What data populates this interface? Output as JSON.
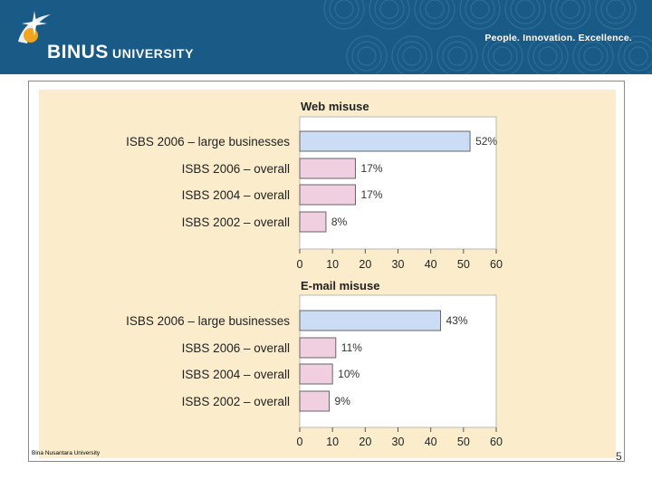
{
  "header": {
    "brand_name": "BINUS",
    "brand_suffix": "UNIVERSITY",
    "tagline": "People. Innovation. Excellence.",
    "logo_icon": "binus-swoosh-icon",
    "colors": {
      "header_bg": "#1a5a87",
      "chart_bg": "#fbedcc"
    }
  },
  "footer": {
    "text": "Bina Nusantara University",
    "page_number": "5"
  },
  "chart_data": [
    {
      "type": "bar",
      "orientation": "horizontal",
      "title": "Web misuse",
      "categories": [
        "ISBS 2006 – large businesses",
        "ISBS 2006 – overall",
        "ISBS 2004 – overall",
        "ISBS 2002 – overall"
      ],
      "values": [
        52,
        17,
        17,
        8
      ],
      "value_labels": [
        "52%",
        "17%",
        "17%",
        "8%"
      ],
      "bar_colors": [
        "#cbdcf5",
        "#efcfe0",
        "#efcfe0",
        "#efcfe0"
      ],
      "xlim": [
        0,
        60
      ],
      "xticks": [
        "0",
        "10",
        "20",
        "30",
        "40",
        "50",
        "60"
      ]
    },
    {
      "type": "bar",
      "orientation": "horizontal",
      "title": "E-mail misuse",
      "categories": [
        "ISBS 2006 – large businesses",
        "ISBS 2006 – overall",
        "ISBS 2004 – overall",
        "ISBS 2002 – overall"
      ],
      "values": [
        43,
        11,
        10,
        9
      ],
      "value_labels": [
        "43%",
        "11%",
        "10%",
        "9%"
      ],
      "bar_colors": [
        "#cbdcf5",
        "#efcfe0",
        "#efcfe0",
        "#efcfe0"
      ],
      "xlim": [
        0,
        60
      ],
      "xticks": [
        "0",
        "10",
        "20",
        "30",
        "40",
        "50",
        "60"
      ]
    }
  ]
}
